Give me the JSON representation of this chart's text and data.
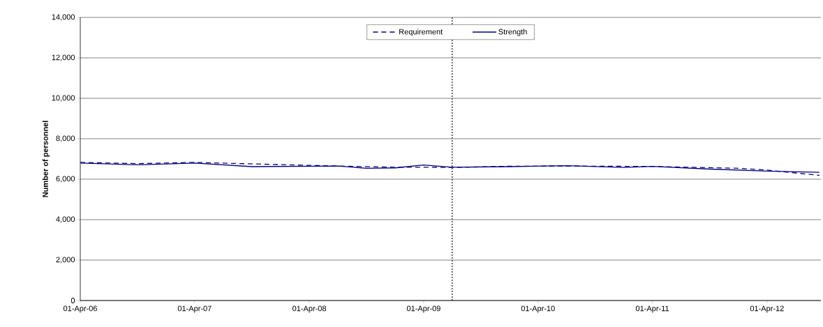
{
  "chart_data": {
    "type": "line",
    "ylabel": "Number of personnel",
    "series": [
      {
        "name": "Requirement",
        "color": "#000080",
        "line_style": "dashed",
        "x": [
          "2006-04-01",
          "2006-10-01",
          "2007-04-01",
          "2008-01-01",
          "2008-07-01",
          "2009-01-01",
          "2009-04-01",
          "2009-07-01",
          "2010-01-01",
          "2010-07-01",
          "2011-04-01",
          "2012-01-01",
          "2012-04-01",
          "2012-09-15"
        ],
        "values": [
          6830,
          6770,
          6830,
          6720,
          6650,
          6590,
          6590,
          6580,
          6640,
          6650,
          6630,
          6540,
          6450,
          6190
        ]
      },
      {
        "name": "Strength",
        "color": "#000080",
        "line_style": "solid",
        "x": [
          "2006-04-01",
          "2006-10-01",
          "2007-04-01",
          "2007-10-01",
          "2008-07-01",
          "2008-10-01",
          "2009-01-01",
          "2009-04-01",
          "2009-07-01",
          "2010-01-01",
          "2010-07-01",
          "2011-01-01",
          "2011-04-01",
          "2011-10-01",
          "2012-04-01",
          "2012-09-15"
        ],
        "values": [
          6800,
          6710,
          6800,
          6620,
          6650,
          6540,
          6560,
          6700,
          6590,
          6620,
          6670,
          6580,
          6630,
          6500,
          6400,
          6340
        ]
      }
    ],
    "xlim": [
      "2006-04-01",
      "2012-09-20"
    ],
    "xticks": [
      {
        "value": "2006-04-01",
        "label": "01-Apr-06"
      },
      {
        "value": "2007-04-01",
        "label": "01-Apr-07"
      },
      {
        "value": "2008-04-01",
        "label": "01-Apr-08"
      },
      {
        "value": "2009-04-01",
        "label": "01-Apr-09"
      },
      {
        "value": "2010-04-01",
        "label": "01-Apr-10"
      },
      {
        "value": "2011-04-01",
        "label": "01-Apr-11"
      },
      {
        "value": "2012-04-01",
        "label": "01-Apr-12"
      }
    ],
    "ylim": [
      0,
      14000
    ],
    "yticks": [
      0,
      {
        "value": 2000,
        "label": "2,000"
      },
      {
        "value": 4000,
        "label": "4,000"
      },
      {
        "value": 6000,
        "label": "6,000"
      },
      {
        "value": 8000,
        "label": "8,000"
      },
      {
        "value": 10000,
        "label": "10,000"
      },
      {
        "value": 12000,
        "label": "12,000"
      },
      {
        "value": 14000,
        "label": "14,000"
      }
    ],
    "ref_lines": [
      {
        "axis": "x",
        "value": "2009-07-01",
        "color": "#404040",
        "line_style": "dotted"
      }
    ],
    "grid": "y",
    "legend": "top",
    "marker": "none"
  }
}
